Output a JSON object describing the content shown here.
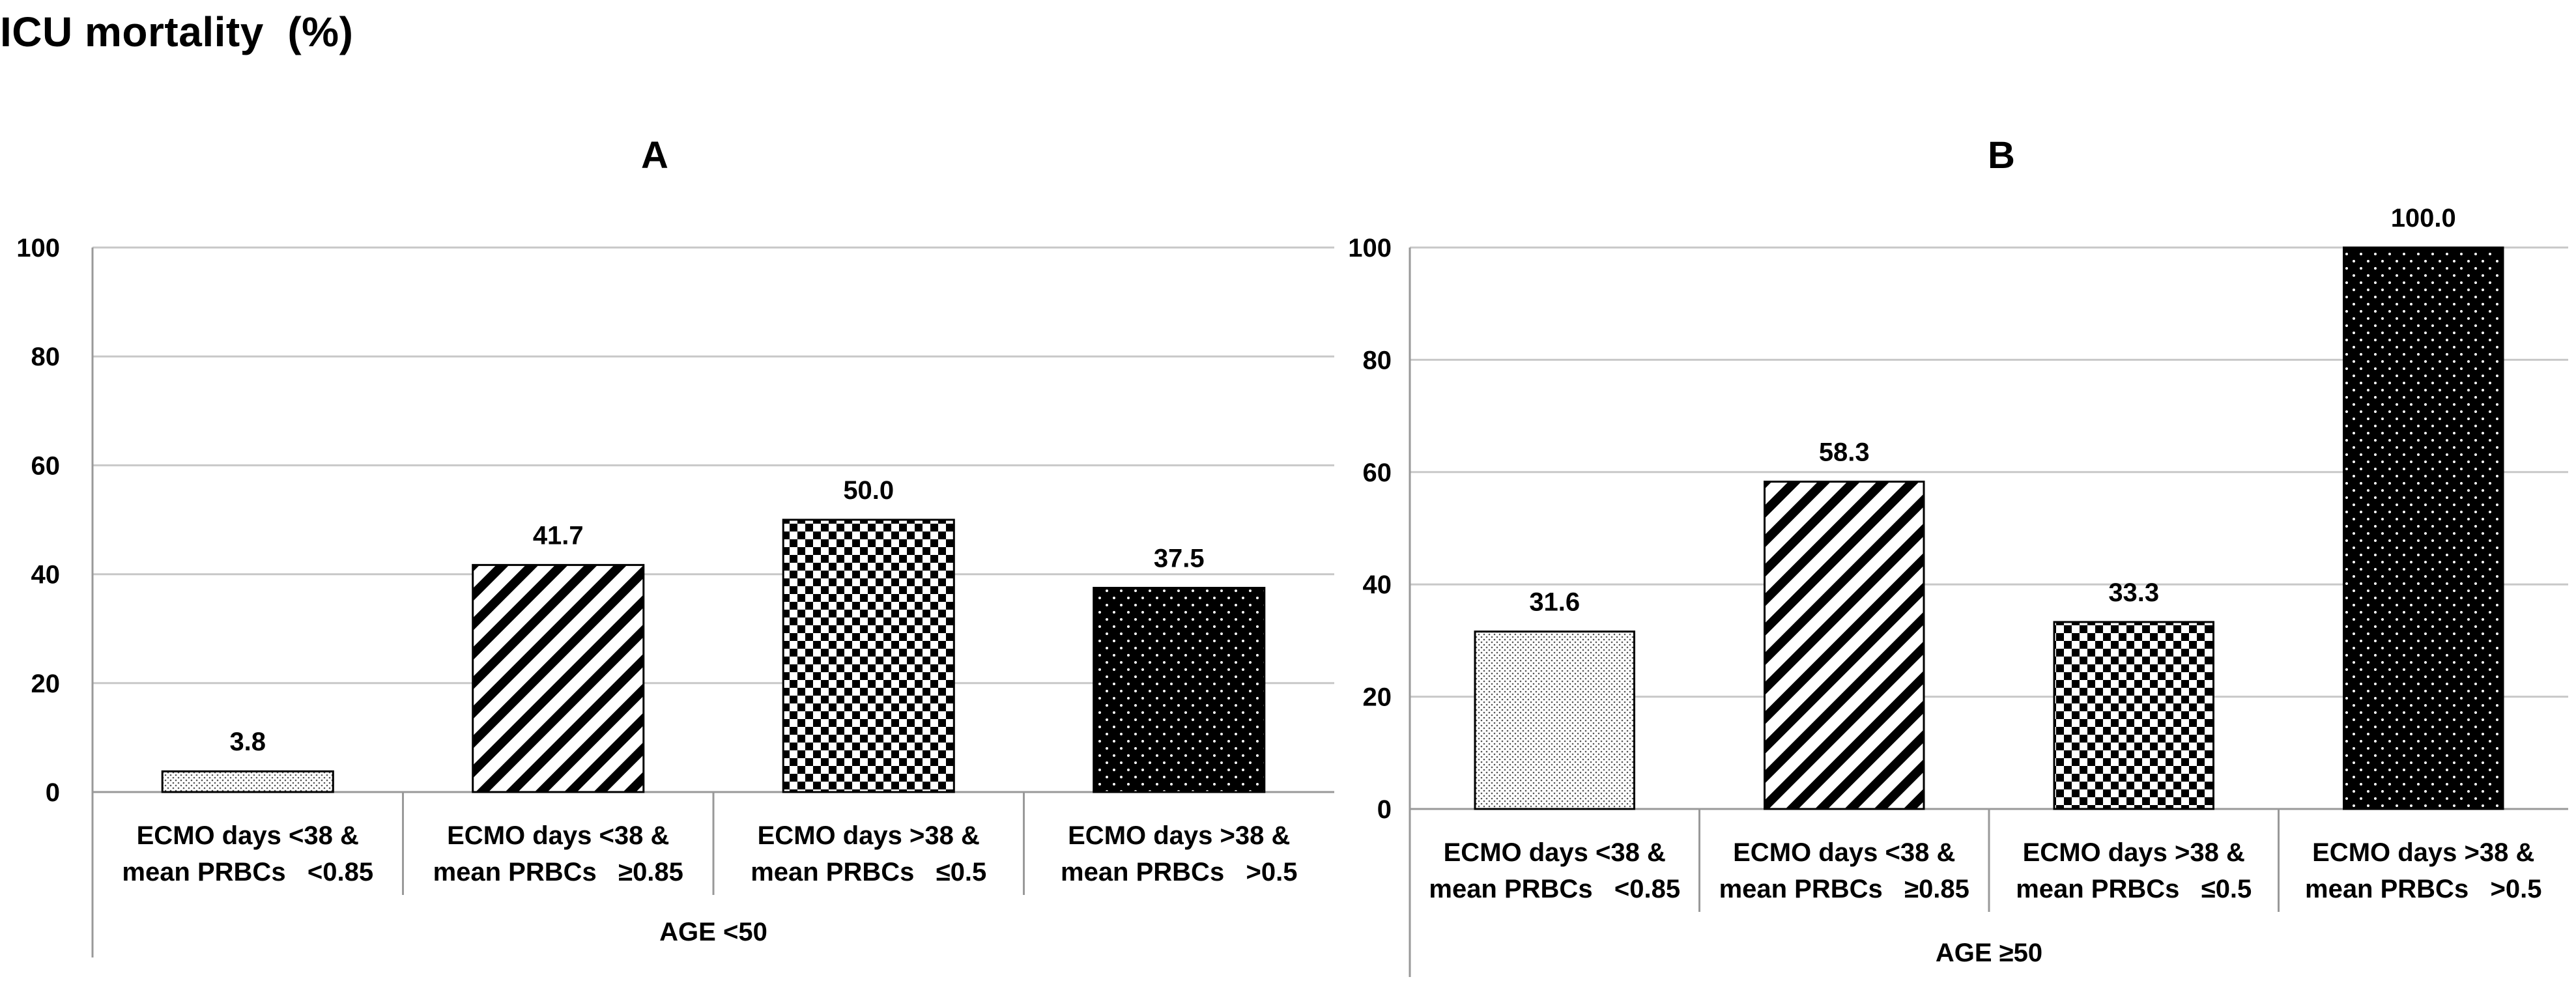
{
  "title": "ICU mortality  (%)",
  "chart_data": [
    {
      "type": "bar",
      "panel_title": "A",
      "group_label": "AGE <50",
      "categories": [
        [
          "ECMO days <38 &",
          "mean PRBCs   <0.85"
        ],
        [
          "ECMO days <38 &",
          "mean PRBCs   ≥0.85"
        ],
        [
          "ECMO days >38 &",
          "mean PRBCs   ≤0.5"
        ],
        [
          "ECMO days >38 &",
          "mean PRBCs   >0.5"
        ]
      ],
      "values": [
        3.8,
        41.7,
        50.0,
        37.5
      ],
      "value_labels": [
        "3.8",
        "41.7",
        "50.0",
        "37.5"
      ],
      "ylim": [
        0,
        100
      ],
      "yticks": [
        "0",
        "20",
        "40",
        "60",
        "80",
        "100"
      ],
      "grid": true,
      "patterns": [
        "dotted-light",
        "diagonal-stripes",
        "checkerboard",
        "black-dotted"
      ]
    },
    {
      "type": "bar",
      "panel_title": "B",
      "group_label": "AGE ≥50",
      "categories": [
        [
          "ECMO days <38 &",
          "mean PRBCs   <0.85"
        ],
        [
          "ECMO days <38 &",
          "mean PRBCs   ≥0.85"
        ],
        [
          "ECMO days >38 &",
          "mean PRBCs   ≤0.5"
        ],
        [
          "ECMO days >38 &",
          "mean PRBCs   >0.5"
        ]
      ],
      "values": [
        31.6,
        58.3,
        33.3,
        100.0
      ],
      "value_labels": [
        "31.6",
        "58.3",
        "33.3",
        "100.0"
      ],
      "ylim": [
        0,
        100
      ],
      "yticks": [
        "0",
        "20",
        "40",
        "60",
        "80",
        "100"
      ],
      "grid": true,
      "patterns": [
        "dotted-light",
        "diagonal-stripes",
        "checkerboard",
        "black-dotted"
      ]
    }
  ]
}
